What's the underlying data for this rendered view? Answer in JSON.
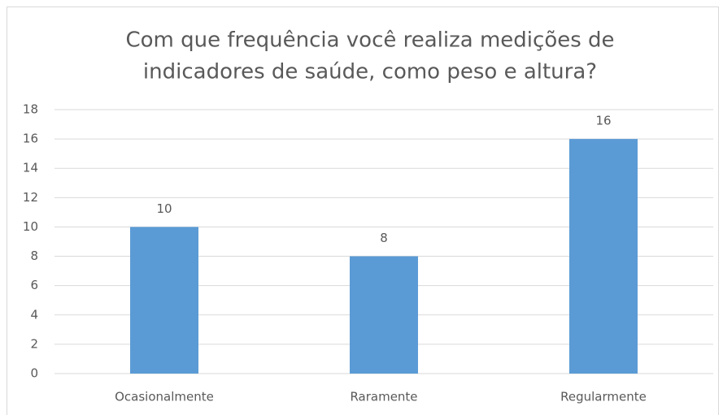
{
  "chart_data": {
    "type": "bar",
    "title": [
      "Com que frequência você realiza medições de",
      "indicadores de saúde, como peso e altura?"
    ],
    "categories": [
      "Ocasionalmente",
      "Raramente",
      "Regularmente"
    ],
    "values": [
      10,
      8,
      16
    ],
    "color": "#5b9bd5",
    "ylim": [
      0,
      18
    ],
    "yticks": [
      0,
      2,
      4,
      6,
      8,
      10,
      12,
      14,
      16,
      18
    ],
    "grid": true
  }
}
